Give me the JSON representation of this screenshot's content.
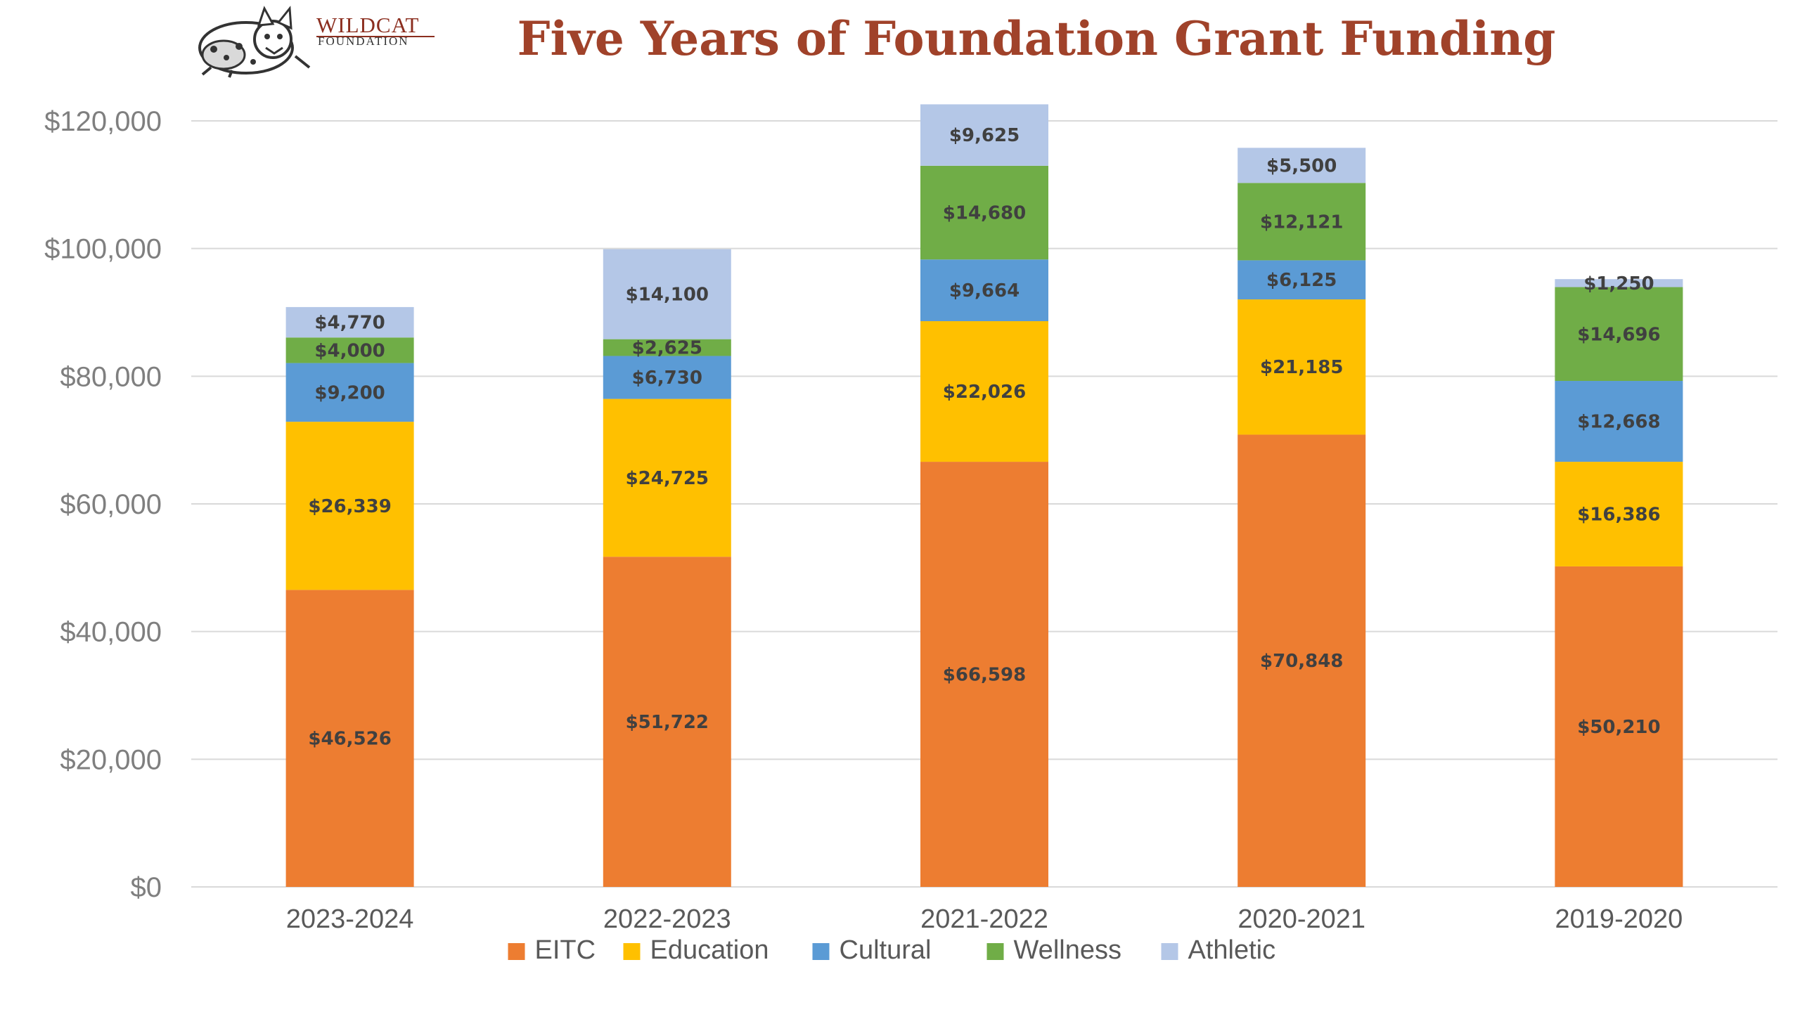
{
  "logo": {
    "name": "WILDCAT",
    "sub": "FOUNDATION",
    "name_color": "#8b2e1f"
  },
  "chart_data": {
    "type": "bar",
    "stacked": true,
    "title": "Five Years of Foundation Grant Funding",
    "title_color": "#a0422a",
    "xlabel": "",
    "ylabel": "",
    "ylim": [
      0,
      120000
    ],
    "yticks": [
      0,
      20000,
      40000,
      60000,
      80000,
      100000,
      120000
    ],
    "ytick_labels": [
      "$0",
      "$20,000",
      "$40,000",
      "$60,000",
      "$80,000",
      "$100,000",
      "$120,000"
    ],
    "grid": true,
    "legend_position": "bottom",
    "categories": [
      "2023-2024",
      "2022-2023",
      "2021-2022",
      "2020-2021",
      "2019-2020"
    ],
    "series": [
      {
        "name": "EITC",
        "color": "#ed7d31",
        "values": [
          46526,
          51722,
          66598,
          70848,
          50210
        ],
        "labels": [
          "$46,526",
          "$51,722",
          "$66,598",
          "$70,848",
          "$50,210"
        ]
      },
      {
        "name": "Education",
        "color": "#ffc000",
        "values": [
          26339,
          24725,
          22026,
          21185,
          16386
        ],
        "labels": [
          "$26,339",
          "$24,725",
          "$22,026",
          "$21,185",
          "$16,386"
        ]
      },
      {
        "name": "Cultural",
        "color": "#5b9bd5",
        "values": [
          9200,
          6730,
          9664,
          6125,
          12668
        ],
        "labels": [
          "$9,200",
          "$6,730",
          "$9,664",
          "$6,125",
          "$12,668"
        ]
      },
      {
        "name": "Wellness",
        "color": "#70ad47",
        "values": [
          4000,
          2625,
          14680,
          12121,
          14696
        ],
        "labels": [
          "$4,000",
          "$2,625",
          "$14,680",
          "$12,121",
          "$14,696"
        ]
      },
      {
        "name": "Athletic",
        "color": "#b4c7e7",
        "values": [
          4770,
          14100,
          9625,
          5500,
          1250
        ],
        "labels": [
          "$4,770",
          "$14,100",
          "$9,625",
          "$5,500",
          "$1,250"
        ]
      }
    ]
  }
}
